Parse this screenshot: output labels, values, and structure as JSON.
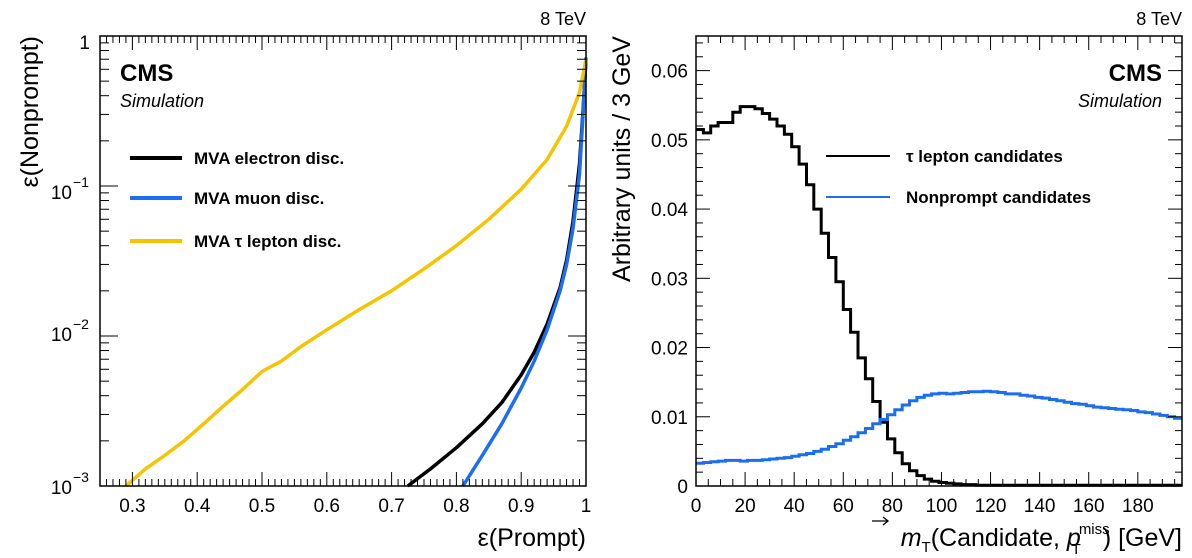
{
  "left_panel": {
    "energy_label": "8 TeV",
    "cms_label": "CMS",
    "simulation_label": "Simulation",
    "x_axis_title": "ε(Prompt)",
    "y_axis_title": "ε(Nonprompt)",
    "x_tick_labels": [
      "0.3",
      "0.4",
      "0.5",
      "0.6",
      "0.7",
      "0.8",
      "0.9",
      "1"
    ],
    "y_tick_labels": {
      "one": "1",
      "tenth_base": "10",
      "tenth_exp": "−1",
      "hundredth_base": "10",
      "hundredth_exp": "−2",
      "thousandth_base": "10",
      "thousandth_exp": "−3"
    },
    "legend": [
      "MVA electron disc.",
      "MVA muon disc.",
      "MVA τ lepton disc."
    ]
  },
  "right_panel": {
    "energy_label": "8 TeV",
    "cms_label": "CMS",
    "simulation_label": "Simulation",
    "x_axis_title": {
      "m": "m",
      "sub_t": "T",
      "candidate": "(Candidate, ",
      "p": "p",
      "sup_miss": "miss",
      "sub_t2": "T",
      "close": ") [GeV]"
    },
    "y_axis_title": "Arbitrary units / 3 GeV",
    "x_tick_labels": [
      "0",
      "20",
      "40",
      "60",
      "80",
      "100",
      "120",
      "140",
      "160",
      "180"
    ],
    "y_tick_labels": [
      "0",
      "0.01",
      "0.02",
      "0.03",
      "0.04",
      "0.05",
      "0.06"
    ],
    "legend": [
      "τ lepton candidates",
      "Nonprompt candidates"
    ]
  },
  "chart_data": [
    {
      "type": "line",
      "title": "",
      "xlabel": "ε(Prompt)",
      "ylabel": "ε(Nonprompt)",
      "xlim": [
        0.25,
        1.0
      ],
      "ylim": [
        0.001,
        1.0
      ],
      "y_scale": "log",
      "legend_position": "top-left",
      "series": [
        {
          "name": "MVA electron disc.",
          "color": "#000000",
          "x": [
            0.725,
            0.76,
            0.8,
            0.84,
            0.87,
            0.9,
            0.92,
            0.94,
            0.96,
            0.97,
            0.98,
            0.99,
            0.995,
            1.0
          ],
          "y": [
            0.001,
            0.0013,
            0.0018,
            0.0026,
            0.0036,
            0.0055,
            0.0078,
            0.012,
            0.021,
            0.032,
            0.058,
            0.14,
            0.3,
            0.7
          ]
        },
        {
          "name": "MVA muon disc.",
          "color": "#1c6ef0",
          "x": [
            0.81,
            0.84,
            0.87,
            0.9,
            0.92,
            0.94,
            0.96,
            0.97,
            0.98,
            0.99,
            0.995,
            1.0
          ],
          "y": [
            0.001,
            0.0016,
            0.0026,
            0.0045,
            0.0068,
            0.011,
            0.02,
            0.03,
            0.052,
            0.12,
            0.28,
            0.72
          ]
        },
        {
          "name": "MVA τ lepton disc.",
          "color": "#f5c400",
          "x": [
            0.29,
            0.32,
            0.35,
            0.38,
            0.41,
            0.44,
            0.47,
            0.5,
            0.53,
            0.56,
            0.6,
            0.65,
            0.7,
            0.75,
            0.8,
            0.85,
            0.9,
            0.94,
            0.97,
            0.99,
            1.0
          ],
          "y": [
            0.001,
            0.0013,
            0.0016,
            0.002,
            0.0026,
            0.0034,
            0.0044,
            0.0058,
            0.0068,
            0.0085,
            0.011,
            0.015,
            0.02,
            0.028,
            0.04,
            0.06,
            0.095,
            0.15,
            0.25,
            0.42,
            0.7
          ]
        }
      ]
    },
    {
      "type": "line",
      "title": "",
      "xlabel": "mT(Candidate, p_T^miss) [GeV]",
      "ylabel": "Arbitrary units / 3 GeV",
      "xlim": [
        0,
        198
      ],
      "ylim": [
        0,
        0.065
      ],
      "step": true,
      "bin_width": 3,
      "legend_position": "top-right",
      "series": [
        {
          "name": "τ lepton candidates",
          "color": "#000000",
          "values": [
            0.0515,
            0.051,
            0.052,
            0.0525,
            0.0525,
            0.054,
            0.0548,
            0.0548,
            0.0545,
            0.0538,
            0.053,
            0.052,
            0.0508,
            0.049,
            0.0465,
            0.0435,
            0.04,
            0.0365,
            0.033,
            0.0295,
            0.0255,
            0.0222,
            0.0185,
            0.0155,
            0.0122,
            0.0092,
            0.0068,
            0.0048,
            0.0032,
            0.0022,
            0.0015,
            0.001,
            0.0007,
            0.0005,
            0.0004,
            0.0003,
            0.0002,
            0.0002,
            0.0001,
            0.0001,
            0.0001,
            0.0001,
            0.0001,
            0.0001,
            0.0001,
            0.0001,
            0.0001,
            0.0001,
            0.0001,
            0.0001,
            0.0001,
            0.0001,
            0.0001,
            0.0001,
            0.0001,
            0.0001,
            0.0001,
            0.0001,
            0.0001,
            0.0001,
            0.0001,
            0.0001,
            0.0001,
            0.0001,
            0.0001,
            0.0001
          ]
        },
        {
          "name": "Nonprompt candidates",
          "color": "#1c6ef0",
          "values": [
            0.0033,
            0.0034,
            0.0035,
            0.0036,
            0.0037,
            0.0037,
            0.0036,
            0.0037,
            0.0037,
            0.0038,
            0.0039,
            0.004,
            0.0041,
            0.0043,
            0.0045,
            0.0047,
            0.005,
            0.0053,
            0.0057,
            0.0061,
            0.0066,
            0.0071,
            0.0077,
            0.0083,
            0.009,
            0.0096,
            0.0103,
            0.011,
            0.0117,
            0.0123,
            0.0128,
            0.0131,
            0.0133,
            0.0134,
            0.0133,
            0.0134,
            0.0135,
            0.0136,
            0.0136,
            0.0137,
            0.0136,
            0.0135,
            0.0133,
            0.0133,
            0.0131,
            0.013,
            0.0128,
            0.0127,
            0.0125,
            0.0123,
            0.0121,
            0.0119,
            0.0118,
            0.0116,
            0.0114,
            0.0113,
            0.0112,
            0.0111,
            0.011,
            0.0109,
            0.0107,
            0.0106,
            0.0104,
            0.0102,
            0.01,
            0.0098
          ]
        }
      ]
    }
  ]
}
